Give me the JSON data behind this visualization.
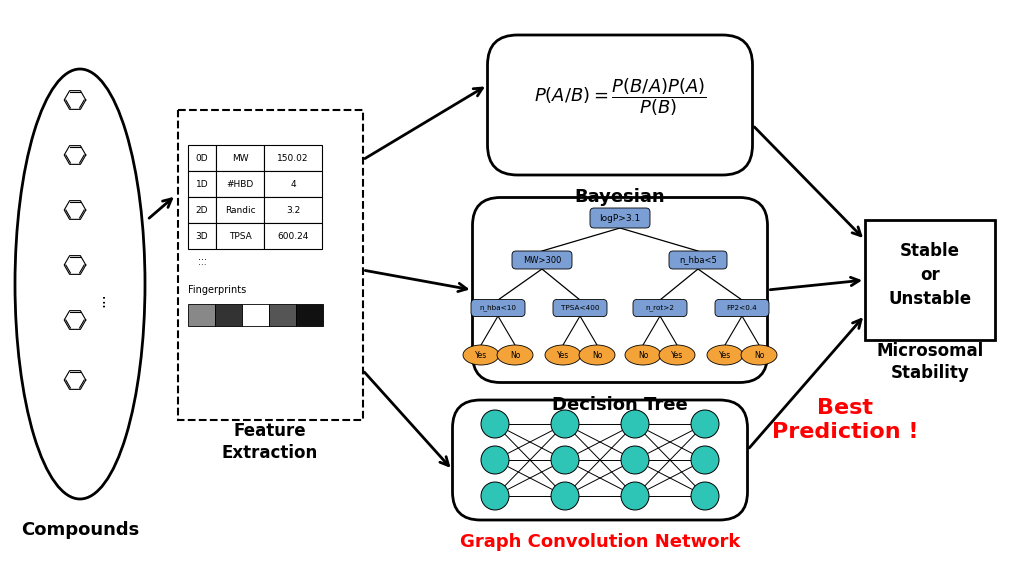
{
  "bg_color": "#ffffff",
  "compounds_label": "Compounds",
  "feature_label": "Feature\nExtraction",
  "bayesian_label": "Bayesian",
  "decision_label": "Decision Tree",
  "gcn_label": "Graph Convolution Network",
  "output_label": "Stable\nor\nUnstable",
  "microsomal_label": "Microsomal\nStability",
  "best_label": "Best\nPrediction !",
  "bayes_formula_top": "$P(A/B) = \\dfrac{P(B/A)P(A)}{P(B)}$",
  "table_data": [
    [
      "0D",
      "MW",
      "150.02"
    ],
    [
      "1D",
      "#HBD",
      "4"
    ],
    [
      "2D",
      "Randic",
      "3.2"
    ],
    [
      "3D",
      "TPSA",
      "600.24"
    ],
    [
      "...",
      "",
      ""
    ]
  ],
  "dt_root": "logP>3.1",
  "dt_l1_left": "MW>300",
  "dt_l1_right": "n_hba<5",
  "dt_l2": [
    "n_hba<10",
    "TPSA<400",
    "n_rot>2",
    "FP2<0.4"
  ],
  "dt_leaves": [
    "Yes",
    "No",
    "Yes",
    "No",
    "No",
    "Yes",
    "Yes",
    "No"
  ],
  "node_box_color": "#7b9fd4",
  "leaf_color": "#f4a338",
  "node_color": "#2ec4b6",
  "red_color": "#ff0000",
  "fp_colors": [
    "#888888",
    "#333333",
    "#ffffff",
    "#555555",
    "#111111"
  ]
}
